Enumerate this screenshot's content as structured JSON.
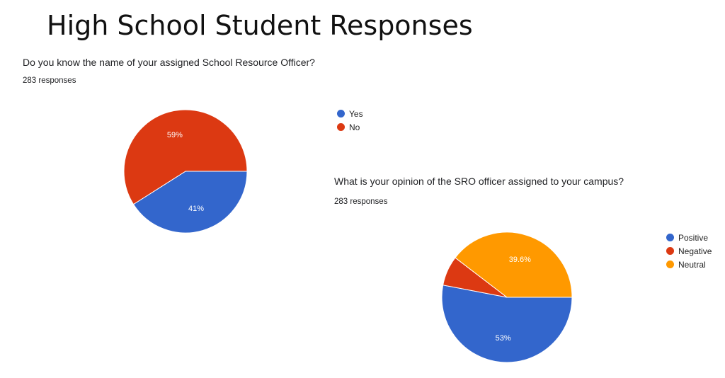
{
  "page": {
    "title": "High School Student Responses"
  },
  "colors": {
    "blue": "#3366cc",
    "red": "#dc3912",
    "orange": "#ff9900"
  },
  "chart_data": [
    {
      "type": "pie",
      "title": "Do you know the name of your assigned School Resource Officer?",
      "subtitle": "283 responses",
      "legend_placement": "right",
      "slices": [
        {
          "label": "Yes",
          "value": 41,
          "display": "41%",
          "color": "#3366cc"
        },
        {
          "label": "No",
          "value": 59,
          "display": "59%",
          "color": "#dc3912"
        }
      ]
    },
    {
      "type": "pie",
      "title": "What is your opinion of the SRO officer assigned to your campus?",
      "subtitle": "283 responses",
      "legend_placement": "right",
      "slices": [
        {
          "label": "Positive",
          "value": 53,
          "display": "53%",
          "color": "#3366cc"
        },
        {
          "label": "Negative",
          "value": 7.4,
          "display": "",
          "color": "#dc3912"
        },
        {
          "label": "Neutral",
          "value": 39.6,
          "display": "39.6%",
          "color": "#ff9900"
        }
      ]
    }
  ]
}
